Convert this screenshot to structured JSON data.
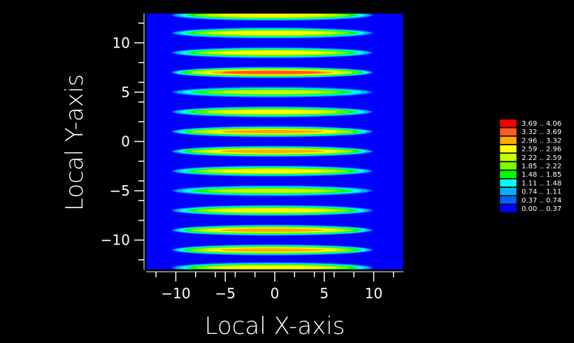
{
  "chart_data": {
    "type": "heatmap",
    "title": "",
    "xlabel": "Local X-axis",
    "ylabel": "Local Y-axis",
    "xlim": [
      -13,
      13
    ],
    "ylim": [
      -13,
      13
    ],
    "x_ticks": [
      -10,
      -5,
      0,
      5,
      10
    ],
    "y_ticks": [
      -10,
      -5,
      0,
      5,
      10
    ],
    "x_tick_labels": [
      "−10",
      "−5",
      "0",
      "5",
      "10"
    ],
    "y_tick_labels": [
      "−10",
      "−5",
      "0",
      "5",
      "10"
    ],
    "grid": false,
    "legend_placement": "right",
    "background_color": "#0000ff",
    "band_y_centers": [
      -12.8,
      -11.0,
      -9.0,
      -7.0,
      -5.0,
      -3.0,
      -1.0,
      1.0,
      3.0,
      5.0,
      7.0,
      9.0,
      11.0,
      12.8
    ],
    "band_x_extent": [
      -10.5,
      10.0
    ],
    "band_peak_values": [
      2.7,
      3.0,
      3.1,
      2.6,
      2.5,
      2.6,
      3.3,
      3.2,
      2.9,
      2.5,
      3.4,
      2.9,
      2.6,
      2.8
    ],
    "legend": [
      {
        "label": "3.69 .. 4.06",
        "color": "#ff0000"
      },
      {
        "label": "3.32 .. 3.69",
        "color": "#ff5a1e"
      },
      {
        "label": "2.96 .. 3.32",
        "color": "#ffaa00"
      },
      {
        "label": "2.59 .. 2.96",
        "color": "#ffff00"
      },
      {
        "label": "2.22 .. 2.59",
        "color": "#c8ff00"
      },
      {
        "label": "1.85 .. 2.22",
        "color": "#78ff00"
      },
      {
        "label": "1.48 .. 1.85",
        "color": "#00ff00"
      },
      {
        "label": "1.11 .. 1.48",
        "color": "#00ffff"
      },
      {
        "label": "0.74 .. 1.11",
        "color": "#00b4ff"
      },
      {
        "label": "0.37 .. 0.74",
        "color": "#0064ff"
      },
      {
        "label": "0.00 .. 0.37",
        "color": "#0000ff"
      }
    ]
  }
}
